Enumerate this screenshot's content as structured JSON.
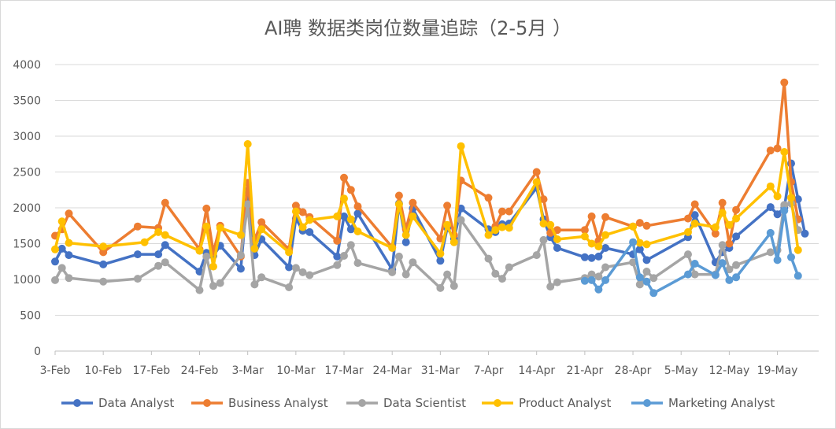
{
  "chart_data": {
    "type": "line",
    "title": "AI聘 数据类岗位数量追踪（2-5月 ）",
    "ylim": [
      0,
      4000
    ],
    "yticks": [
      0,
      500,
      1000,
      1500,
      2000,
      2500,
      3000,
      3500,
      4000
    ],
    "xlim": [
      "2023-02-03",
      "2023-05-25"
    ],
    "xticks": [
      "3-Feb",
      "10-Feb",
      "17-Feb",
      "24-Feb",
      "3-Mar",
      "10-Mar",
      "17-Mar",
      "24-Mar",
      "31-Mar",
      "7-Apr",
      "14-Apr",
      "21-Apr",
      "28-Apr",
      "5-May",
      "12-May",
      "19-May"
    ],
    "grid": "horizontal",
    "legend": "bottom",
    "series": [
      {
        "name": "Data Analyst",
        "color": "#4472C4",
        "points": [
          [
            "2023-02-03",
            1250
          ],
          [
            "2023-02-04",
            1430
          ],
          [
            "2023-02-05",
            1340
          ],
          [
            "2023-02-10",
            1210
          ],
          [
            "2023-02-15",
            1350
          ],
          [
            "2023-02-18",
            1350
          ],
          [
            "2023-02-19",
            1480
          ],
          [
            "2023-02-24",
            1110
          ],
          [
            "2023-02-25",
            1370
          ],
          [
            "2023-02-26",
            1330
          ],
          [
            "2023-02-27",
            1470
          ],
          [
            "2023-03-02",
            1150
          ],
          [
            "2023-03-03",
            2240
          ],
          [
            "2023-03-04",
            1340
          ],
          [
            "2023-03-05",
            1560
          ],
          [
            "2023-03-09",
            1170
          ],
          [
            "2023-03-10",
            1850
          ],
          [
            "2023-03-11",
            1680
          ],
          [
            "2023-03-12",
            1660
          ],
          [
            "2023-03-16",
            1320
          ],
          [
            "2023-03-17",
            1880
          ],
          [
            "2023-03-18",
            1700
          ],
          [
            "2023-03-19",
            1920
          ],
          [
            "2023-03-24",
            1140
          ],
          [
            "2023-03-25",
            2060
          ],
          [
            "2023-03-26",
            1520
          ],
          [
            "2023-03-27",
            1990
          ],
          [
            "2023-03-31",
            1260
          ],
          [
            "2023-04-01",
            1720
          ],
          [
            "2023-04-02",
            1570
          ],
          [
            "2023-04-03",
            1990
          ],
          [
            "2023-04-07",
            1700
          ],
          [
            "2023-04-08",
            1660
          ],
          [
            "2023-04-09",
            1770
          ],
          [
            "2023-04-10",
            1780
          ],
          [
            "2023-04-14",
            2280
          ],
          [
            "2023-04-15",
            1840
          ],
          [
            "2023-04-16",
            1590
          ],
          [
            "2023-04-17",
            1440
          ],
          [
            "2023-04-21",
            1310
          ],
          [
            "2023-04-22",
            1300
          ],
          [
            "2023-04-23",
            1320
          ],
          [
            "2023-04-24",
            1440
          ],
          [
            "2023-04-28",
            1350
          ],
          [
            "2023-04-29",
            1420
          ],
          [
            "2023-04-30",
            1270
          ],
          [
            "2023-05-06",
            1590
          ],
          [
            "2023-05-07",
            1900
          ],
          [
            "2023-05-10",
            1240
          ],
          [
            "2023-05-11",
            1380
          ],
          [
            "2023-05-12",
            1440
          ],
          [
            "2023-05-13",
            1600
          ],
          [
            "2023-05-18",
            2010
          ],
          [
            "2023-05-19",
            1910
          ],
          [
            "2023-05-20",
            2000
          ],
          [
            "2023-05-21",
            2620
          ],
          [
            "2023-05-22",
            2120
          ],
          [
            "2023-05-23",
            1640
          ]
        ]
      },
      {
        "name": "Business Analyst",
        "color": "#ED7D31",
        "points": [
          [
            "2023-02-03",
            1610
          ],
          [
            "2023-02-04",
            1700
          ],
          [
            "2023-02-05",
            1920
          ],
          [
            "2023-02-10",
            1380
          ],
          [
            "2023-02-15",
            1740
          ],
          [
            "2023-02-18",
            1720
          ],
          [
            "2023-02-19",
            2070
          ],
          [
            "2023-02-24",
            1420
          ],
          [
            "2023-02-25",
            1990
          ],
          [
            "2023-02-26",
            1380
          ],
          [
            "2023-02-27",
            1750
          ],
          [
            "2023-03-02",
            1320
          ],
          [
            "2023-03-03",
            2350
          ],
          [
            "2023-03-04",
            1550
          ],
          [
            "2023-03-05",
            1800
          ],
          [
            "2023-03-09",
            1420
          ],
          [
            "2023-03-10",
            2030
          ],
          [
            "2023-03-11",
            1940
          ],
          [
            "2023-03-12",
            1870
          ],
          [
            "2023-03-16",
            1540
          ],
          [
            "2023-03-17",
            2420
          ],
          [
            "2023-03-18",
            2250
          ],
          [
            "2023-03-19",
            2020
          ],
          [
            "2023-03-24",
            1450
          ],
          [
            "2023-03-25",
            2170
          ],
          [
            "2023-03-26",
            1700
          ],
          [
            "2023-03-27",
            2070
          ],
          [
            "2023-03-31",
            1570
          ],
          [
            "2023-04-01",
            2030
          ],
          [
            "2023-04-02",
            1620
          ],
          [
            "2023-04-03",
            2380
          ],
          [
            "2023-04-07",
            2140
          ],
          [
            "2023-04-08",
            1740
          ],
          [
            "2023-04-09",
            1950
          ],
          [
            "2023-04-10",
            1950
          ],
          [
            "2023-04-14",
            2500
          ],
          [
            "2023-04-15",
            2120
          ],
          [
            "2023-04-16",
            1650
          ],
          [
            "2023-04-17",
            1690
          ],
          [
            "2023-04-21",
            1690
          ],
          [
            "2023-04-22",
            1880
          ],
          [
            "2023-04-23",
            1540
          ],
          [
            "2023-04-24",
            1870
          ],
          [
            "2023-04-28",
            1740
          ],
          [
            "2023-04-29",
            1790
          ],
          [
            "2023-04-30",
            1750
          ],
          [
            "2023-05-06",
            1850
          ],
          [
            "2023-05-07",
            2050
          ],
          [
            "2023-05-10",
            1640
          ],
          [
            "2023-05-11",
            2070
          ],
          [
            "2023-05-12",
            1500
          ],
          [
            "2023-05-13",
            1970
          ],
          [
            "2023-05-18",
            2800
          ],
          [
            "2023-05-19",
            2830
          ],
          [
            "2023-05-20",
            3750
          ],
          [
            "2023-05-21",
            2360
          ],
          [
            "2023-05-22",
            1840
          ]
        ]
      },
      {
        "name": "Data Scientist",
        "color": "#A5A5A5",
        "points": [
          [
            "2023-02-03",
            990
          ],
          [
            "2023-02-04",
            1160
          ],
          [
            "2023-02-05",
            1020
          ],
          [
            "2023-02-10",
            970
          ],
          [
            "2023-02-15",
            1010
          ],
          [
            "2023-02-18",
            1190
          ],
          [
            "2023-02-19",
            1240
          ],
          [
            "2023-02-24",
            850
          ],
          [
            "2023-02-25",
            1320
          ],
          [
            "2023-02-26",
            910
          ],
          [
            "2023-02-27",
            950
          ],
          [
            "2023-03-02",
            1340
          ],
          [
            "2023-03-03",
            2050
          ],
          [
            "2023-03-04",
            930
          ],
          [
            "2023-03-05",
            1030
          ],
          [
            "2023-03-09",
            890
          ],
          [
            "2023-03-10",
            1160
          ],
          [
            "2023-03-11",
            1100
          ],
          [
            "2023-03-12",
            1060
          ],
          [
            "2023-03-16",
            1200
          ],
          [
            "2023-03-17",
            1330
          ],
          [
            "2023-03-18",
            1480
          ],
          [
            "2023-03-19",
            1230
          ],
          [
            "2023-03-24",
            1100
          ],
          [
            "2023-03-25",
            1320
          ],
          [
            "2023-03-26",
            1070
          ],
          [
            "2023-03-27",
            1240
          ],
          [
            "2023-03-31",
            880
          ],
          [
            "2023-04-01",
            1070
          ],
          [
            "2023-04-02",
            910
          ],
          [
            "2023-04-03",
            1830
          ],
          [
            "2023-04-07",
            1290
          ],
          [
            "2023-04-08",
            1080
          ],
          [
            "2023-04-09",
            1010
          ],
          [
            "2023-04-10",
            1170
          ],
          [
            "2023-04-14",
            1340
          ],
          [
            "2023-04-15",
            1550
          ],
          [
            "2023-04-16",
            900
          ],
          [
            "2023-04-17",
            960
          ],
          [
            "2023-04-21",
            1020
          ],
          [
            "2023-04-22",
            1070
          ],
          [
            "2023-04-23",
            1040
          ],
          [
            "2023-04-24",
            1170
          ],
          [
            "2023-04-28",
            1240
          ],
          [
            "2023-04-29",
            930
          ],
          [
            "2023-04-30",
            1110
          ],
          [
            "2023-05-01",
            1020
          ],
          [
            "2023-05-06",
            1350
          ],
          [
            "2023-05-07",
            1070
          ],
          [
            "2023-05-10",
            1070
          ],
          [
            "2023-05-11",
            1480
          ],
          [
            "2023-05-12",
            1140
          ],
          [
            "2023-05-13",
            1200
          ],
          [
            "2023-05-18",
            1380
          ],
          [
            "2023-05-19",
            1410
          ],
          [
            "2023-05-20",
            2040
          ],
          [
            "2023-05-21",
            2060
          ],
          [
            "2023-05-22",
            1690
          ]
        ]
      },
      {
        "name": "Product Analyst",
        "color": "#FFC000",
        "points": [
          [
            "2023-02-03",
            1420
          ],
          [
            "2023-02-04",
            1810
          ],
          [
            "2023-02-05",
            1510
          ],
          [
            "2023-02-10",
            1460
          ],
          [
            "2023-02-16",
            1520
          ],
          [
            "2023-02-18",
            1660
          ],
          [
            "2023-02-19",
            1620
          ],
          [
            "2023-02-24",
            1400
          ],
          [
            "2023-02-25",
            1740
          ],
          [
            "2023-02-26",
            1180
          ],
          [
            "2023-02-27",
            1720
          ],
          [
            "2023-03-02",
            1620
          ],
          [
            "2023-03-03",
            2890
          ],
          [
            "2023-03-04",
            1430
          ],
          [
            "2023-03-05",
            1700
          ],
          [
            "2023-03-09",
            1380
          ],
          [
            "2023-03-10",
            1950
          ],
          [
            "2023-03-11",
            1730
          ],
          [
            "2023-03-12",
            1830
          ],
          [
            "2023-03-16",
            1880
          ],
          [
            "2023-03-17",
            2130
          ],
          [
            "2023-03-18",
            1840
          ],
          [
            "2023-03-19",
            1670
          ],
          [
            "2023-03-24",
            1440
          ],
          [
            "2023-03-25",
            2050
          ],
          [
            "2023-03-26",
            1620
          ],
          [
            "2023-03-27",
            1880
          ],
          [
            "2023-03-31",
            1360
          ],
          [
            "2023-04-01",
            1760
          ],
          [
            "2023-04-02",
            1520
          ],
          [
            "2023-04-03",
            2860
          ],
          [
            "2023-04-07",
            1620
          ],
          [
            "2023-04-08",
            1690
          ],
          [
            "2023-04-09",
            1730
          ],
          [
            "2023-04-10",
            1720
          ],
          [
            "2023-04-14",
            2360
          ],
          [
            "2023-04-15",
            1780
          ],
          [
            "2023-04-16",
            1760
          ],
          [
            "2023-04-17",
            1560
          ],
          [
            "2023-04-21",
            1600
          ],
          [
            "2023-04-22",
            1500
          ],
          [
            "2023-04-23",
            1460
          ],
          [
            "2023-04-24",
            1620
          ],
          [
            "2023-04-28",
            1740
          ],
          [
            "2023-04-29",
            1510
          ],
          [
            "2023-04-30",
            1490
          ],
          [
            "2023-05-06",
            1660
          ],
          [
            "2023-05-07",
            1780
          ],
          [
            "2023-05-10",
            1730
          ],
          [
            "2023-05-11",
            1930
          ],
          [
            "2023-05-12",
            1760
          ],
          [
            "2023-05-13",
            1850
          ],
          [
            "2023-05-18",
            2300
          ],
          [
            "2023-05-19",
            2160
          ],
          [
            "2023-05-20",
            2780
          ],
          [
            "2023-05-21",
            2140
          ],
          [
            "2023-05-22",
            1410
          ]
        ]
      },
      {
        "name": "Marketing Analyst",
        "color": "#5B9BD5",
        "points": [
          [
            "2023-04-21",
            980
          ],
          [
            "2023-04-22",
            990
          ],
          [
            "2023-04-23",
            860
          ],
          [
            "2023-04-24",
            990
          ],
          [
            "2023-04-28",
            1520
          ],
          [
            "2023-04-29",
            1030
          ],
          [
            "2023-04-30",
            970
          ],
          [
            "2023-05-01",
            810
          ],
          [
            "2023-05-06",
            1070
          ],
          [
            "2023-05-07",
            1220
          ],
          [
            "2023-05-10",
            1060
          ],
          [
            "2023-05-11",
            1230
          ],
          [
            "2023-05-12",
            990
          ],
          [
            "2023-05-13",
            1030
          ],
          [
            "2023-05-18",
            1650
          ],
          [
            "2023-05-19",
            1270
          ],
          [
            "2023-05-20",
            1960
          ],
          [
            "2023-05-21",
            1310
          ],
          [
            "2023-05-22",
            1050
          ]
        ]
      }
    ]
  }
}
